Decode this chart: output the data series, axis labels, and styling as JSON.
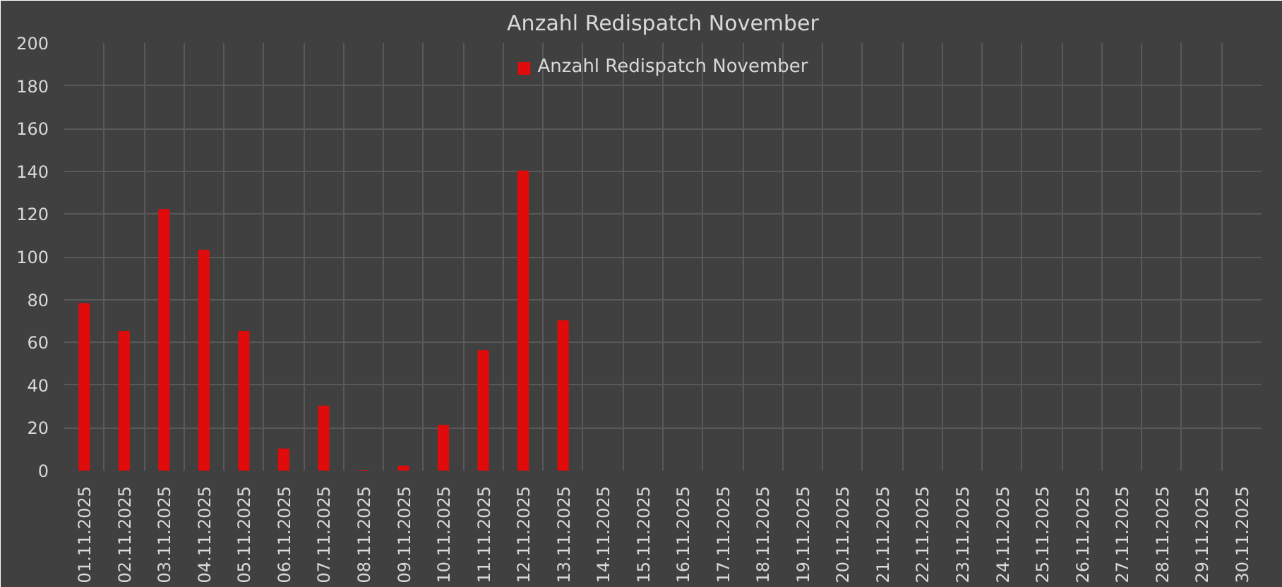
{
  "chart_data": {
    "type": "bar",
    "title": "Anzahl Redispatch November",
    "categories": [
      "01.11.2025",
      "02.11.2025",
      "03.11.2025",
      "04.11.2025",
      "05.11.2025",
      "06.11.2025",
      "07.11.2025",
      "08.11.2025",
      "09.11.2025",
      "10.11.2025",
      "11.11.2025",
      "12.11.2025",
      "13.11.2025",
      "14.11.2025",
      "15.11.2025",
      "16.11.2025",
      "17.11.2025",
      "18.11.2025",
      "19.11.2025",
      "20.11.2025",
      "21.11.2025",
      "22.11.2025",
      "23.11.2025",
      "24.11.2025",
      "25.11.2025",
      "26.11.2025",
      "27.11.2025",
      "28.11.2025",
      "29.11.2025",
      "30.11.2025"
    ],
    "series": [
      {
        "name": "Anzahl Redispatch November",
        "color": "#e00b0b",
        "values": [
          78,
          65,
          122,
          103,
          65,
          10,
          30,
          0,
          2,
          21,
          56,
          140,
          70,
          null,
          null,
          null,
          null,
          null,
          null,
          null,
          null,
          null,
          null,
          null,
          null,
          null,
          null,
          null,
          null,
          null
        ]
      }
    ],
    "ylim": [
      0,
      200
    ],
    "yticks": [
      0,
      20,
      40,
      60,
      80,
      100,
      120,
      140,
      160,
      180,
      200
    ],
    "grid": true,
    "legend": "top"
  }
}
